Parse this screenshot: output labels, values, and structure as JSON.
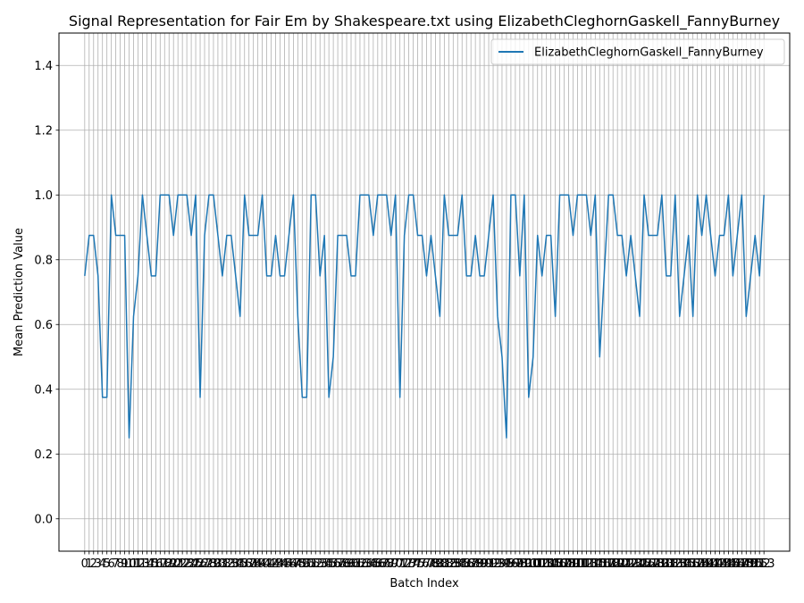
{
  "chart_data": {
    "type": "line",
    "title": "Signal Representation for Fair Em by Shakespeare.txt using ElizabethCleghornGaskell_FannyBurney",
    "xlabel": "Batch Index",
    "ylabel": "Mean Prediction Value",
    "ylim": [
      -0.1,
      1.5
    ],
    "yticks": [
      0.0,
      0.2,
      0.4,
      0.6,
      0.8,
      1.0,
      1.2,
      1.4
    ],
    "ytick_labels": [
      "0.0",
      "0.2",
      "0.4",
      "0.6",
      "0.8",
      "1.0",
      "1.2",
      "1.4"
    ],
    "xlim": [
      -5.8,
      158.8
    ],
    "grid": true,
    "legend_position": "top-right",
    "color": "#1f77b4",
    "series": [
      {
        "name": "ElizabethCleghornGaskell_FannyBurney",
        "x": [
          0,
          1,
          2,
          3,
          4,
          5,
          6,
          7,
          8,
          9,
          10,
          11,
          12,
          13,
          14,
          15,
          16,
          17,
          18,
          19,
          20,
          21,
          22,
          23,
          24,
          25,
          26,
          27,
          28,
          29,
          30,
          31,
          32,
          33,
          34,
          35,
          36,
          37,
          38,
          39,
          40,
          41,
          42,
          43,
          44,
          45,
          46,
          47,
          48,
          49,
          50,
          51,
          52,
          53,
          54,
          55,
          56,
          57,
          58,
          59,
          60,
          61,
          62,
          63,
          64,
          65,
          66,
          67,
          68,
          69,
          70,
          71,
          72,
          73,
          74,
          75,
          76,
          77,
          78,
          79,
          80,
          81,
          82,
          83,
          84,
          85,
          86,
          87,
          88,
          89,
          90,
          91,
          92,
          93,
          94,
          95,
          96,
          97,
          98,
          99,
          100,
          101,
          102,
          103,
          104,
          105,
          106,
          107,
          108,
          109,
          110,
          111,
          112,
          113,
          114,
          115,
          116,
          117,
          118,
          119,
          120,
          121,
          122,
          123,
          124,
          125,
          126,
          127,
          128,
          129,
          130,
          131,
          132,
          133,
          134,
          135,
          136,
          137,
          138,
          139,
          140,
          141,
          142,
          143,
          144,
          145,
          146,
          147,
          148,
          149,
          150,
          151,
          152,
          153
        ],
        "values": [
          0.75,
          0.875,
          0.875,
          0.75,
          0.375,
          0.375,
          1.0,
          0.875,
          0.875,
          0.875,
          0.25,
          0.625,
          0.75,
          1.0,
          0.875,
          0.75,
          0.75,
          1.0,
          1.0,
          1.0,
          0.875,
          1.0,
          1.0,
          1.0,
          0.875,
          1.0,
          0.375,
          0.875,
          1.0,
          1.0,
          0.875,
          0.75,
          0.875,
          0.875,
          0.75,
          0.625,
          1.0,
          0.875,
          0.875,
          0.875,
          1.0,
          0.75,
          0.75,
          0.875,
          0.75,
          0.75,
          0.875,
          1.0,
          0.625,
          0.375,
          0.375,
          1.0,
          1.0,
          0.75,
          0.875,
          0.375,
          0.5,
          0.875,
          0.875,
          0.875,
          0.75,
          0.75,
          1.0,
          1.0,
          1.0,
          0.875,
          1.0,
          1.0,
          1.0,
          0.875,
          1.0,
          0.375,
          0.875,
          1.0,
          1.0,
          0.875,
          0.875,
          0.75,
          0.875,
          0.75,
          0.625,
          1.0,
          0.875,
          0.875,
          0.875,
          1.0,
          0.75,
          0.75,
          0.875,
          0.75,
          0.75,
          0.875,
          1.0,
          0.625,
          0.5,
          0.25,
          1.0,
          1.0,
          0.75,
          1.0,
          0.375,
          0.5,
          0.875,
          0.75,
          0.875,
          0.875,
          0.625,
          1.0,
          1.0,
          1.0,
          0.875,
          1.0,
          1.0,
          1.0,
          0.875,
          1.0,
          0.5,
          0.75,
          1.0,
          1.0,
          0.875,
          0.875,
          0.75,
          0.875,
          0.75,
          0.625,
          1.0,
          0.875,
          0.875,
          0.875,
          1.0,
          0.75,
          0.75,
          1.0,
          0.625,
          0.75,
          0.875,
          0.625,
          1.0,
          0.875,
          1.0,
          0.875,
          0.75,
          0.875,
          0.875,
          1.0,
          0.75,
          0.875,
          1.0,
          0.625,
          0.75,
          0.875,
          0.75,
          1.0
        ]
      }
    ],
    "x_tick_labels": [
      "0",
      "1",
      "2",
      "3",
      "4",
      "5",
      "6",
      "7",
      "8",
      "9",
      "10",
      "11",
      "12",
      "13",
      "14",
      "15",
      "16",
      "17",
      "18",
      "19",
      "20",
      "21",
      "22",
      "23",
      "24",
      "25",
      "26",
      "27",
      "28",
      "29",
      "30",
      "31",
      "32",
      "33",
      "34",
      "35",
      "36",
      "37",
      "38",
      "39",
      "40",
      "41",
      "42",
      "43",
      "44",
      "45",
      "46",
      "47",
      "48",
      "49",
      "50",
      "51",
      "52",
      "53",
      "54",
      "55",
      "56",
      "57",
      "58",
      "59",
      "60",
      "61",
      "62",
      "63",
      "64",
      "65",
      "66",
      "67",
      "68",
      "69",
      "70",
      "71",
      "72",
      "73",
      "74",
      "75",
      "76",
      "77",
      "78",
      "79",
      "80",
      "81",
      "82",
      "83",
      "84",
      "85",
      "86",
      "87",
      "88",
      "89",
      "90",
      "91",
      "92",
      "93",
      "94",
      "95",
      "96",
      "97",
      "98",
      "99",
      "100",
      "101",
      "102",
      "103",
      "104",
      "105",
      "106",
      "107",
      "108",
      "109",
      "110",
      "111",
      "112",
      "113",
      "114",
      "115",
      "116",
      "117",
      "118",
      "119",
      "120",
      "121",
      "122",
      "123",
      "124",
      "125",
      "126",
      "127",
      "128",
      "129",
      "130",
      "131",
      "132",
      "133",
      "134",
      "135",
      "136",
      "137",
      "138",
      "139",
      "140",
      "141",
      "142",
      "143",
      "144",
      "145",
      "146",
      "147",
      "148",
      "149",
      "150",
      "151",
      "152",
      "153"
    ]
  }
}
